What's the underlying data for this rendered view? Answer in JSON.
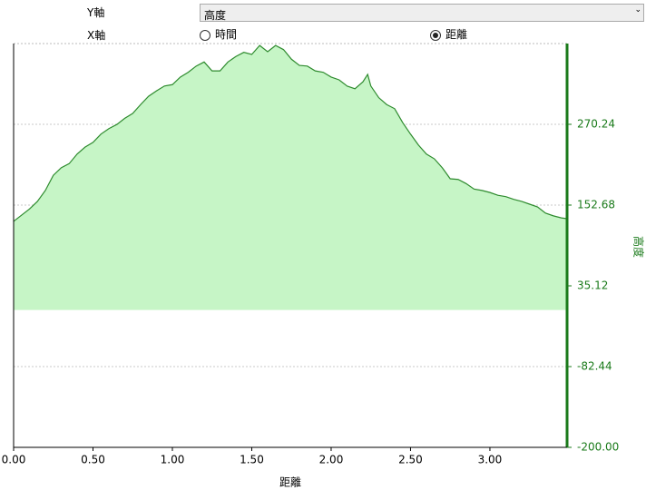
{
  "controls": {
    "y_axis_label": "Y軸",
    "y_axis_value": "高度",
    "x_axis_label": "X軸",
    "x_options": [
      "時間",
      "距離"
    ],
    "x_selected": 1
  },
  "chart_data": {
    "type": "area",
    "x_label": "距離",
    "y_label": "高度",
    "x": [
      0,
      0.1,
      0.15,
      0.2,
      0.25,
      0.3,
      0.35,
      0.4,
      0.45,
      0.5,
      0.55,
      0.6,
      0.65,
      0.7,
      0.75,
      0.8,
      0.85,
      0.9,
      0.95,
      1.0,
      1.05,
      1.1,
      1.15,
      1.2,
      1.25,
      1.3,
      1.35,
      1.4,
      1.45,
      1.5,
      1.55,
      1.6,
      1.65,
      1.7,
      1.75,
      1.8,
      1.85,
      1.9,
      1.95,
      2.0,
      2.05,
      2.1,
      2.15,
      2.2,
      2.23,
      2.25,
      2.3,
      2.35,
      2.4,
      2.45,
      2.5,
      2.55,
      2.6,
      2.65,
      2.7,
      2.75,
      2.8,
      2.85,
      2.9,
      2.95,
      3.0,
      3.05,
      3.1,
      3.15,
      3.2,
      3.25,
      3.3,
      3.35,
      3.4,
      3.45,
      3.48
    ],
    "values": [
      129,
      147,
      158,
      174,
      196,
      207,
      213,
      227,
      237,
      244,
      256,
      264,
      270,
      279,
      286,
      299,
      311,
      319,
      326,
      328,
      339,
      346,
      355,
      361,
      348,
      348,
      361,
      369,
      375,
      372,
      385,
      376,
      385,
      379,
      365,
      356,
      355,
      348,
      346,
      339,
      335,
      326,
      322,
      332,
      343,
      326,
      309,
      299,
      293,
      273,
      256,
      240,
      227,
      220,
      207,
      191,
      190,
      184,
      176,
      174,
      171,
      167,
      165,
      161,
      158,
      154,
      150,
      141,
      137,
      134,
      133
    ],
    "color": "#2e8b2e",
    "fill_color": "#c6f5c6",
    "axis_color": "#1a7a1a",
    "xlim": [
      0,
      3.486
    ],
    "ylim": [
      -200,
      387.8
    ],
    "xticks": [
      {
        "value": 0,
        "label": "0.00"
      },
      {
        "value": 0.5,
        "label": "0.50"
      },
      {
        "value": 1,
        "label": "1.00"
      },
      {
        "value": 1.5,
        "label": "1.50"
      },
      {
        "value": 2,
        "label": "2.00"
      },
      {
        "value": 2.5,
        "label": "2.50"
      },
      {
        "value": 3,
        "label": "3.00"
      }
    ],
    "yticks": [
      {
        "value": -200,
        "label": "-200.00"
      },
      -82.44,
      35.12,
      152.68,
      270.24
    ],
    "grid": true
  }
}
